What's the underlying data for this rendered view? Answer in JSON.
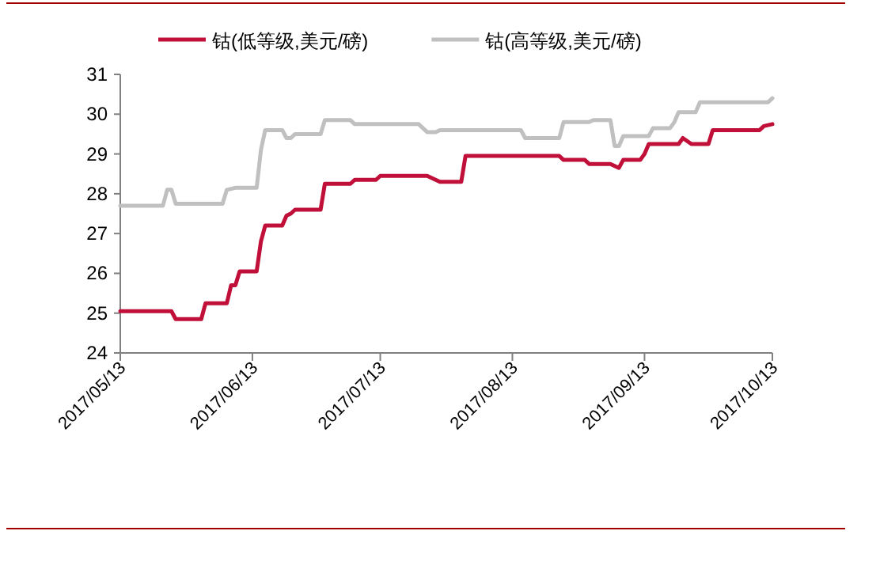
{
  "chart_data": {
    "type": "line",
    "legend": "top",
    "grid": false,
    "line_style": "solid",
    "xlim": [
      "2017-05-13",
      "2017-10-13"
    ],
    "xticks": [
      {
        "value": "2017-05-13",
        "label": "2017/05/13"
      },
      {
        "value": "2017-06-13",
        "label": "2017/06/13"
      },
      {
        "value": "2017-07-13",
        "label": "2017/07/13"
      },
      {
        "value": "2017-08-13",
        "label": "2017/08/13"
      },
      {
        "value": "2017-09-13",
        "label": "2017/09/13"
      },
      {
        "value": "2017-10-13",
        "label": "2017/10/13"
      }
    ],
    "ylim": [
      24,
      31
    ],
    "yticks": [
      24,
      25,
      26,
      27,
      28,
      29,
      30,
      31
    ],
    "series": [
      {
        "name": "钴(低等级,美元/磅)",
        "color": "#c0103a",
        "x": [
          "2017-05-13",
          "2017-05-25",
          "2017-05-26",
          "2017-06-01",
          "2017-06-02",
          "2017-06-07",
          "2017-06-08",
          "2017-06-09",
          "2017-06-10",
          "2017-06-14",
          "2017-06-15",
          "2017-06-16",
          "2017-06-20",
          "2017-06-21",
          "2017-06-22",
          "2017-06-23",
          "2017-06-29",
          "2017-06-30",
          "2017-07-06",
          "2017-07-07",
          "2017-07-12",
          "2017-07-13",
          "2017-07-24",
          "2017-07-27",
          "2017-08-01",
          "2017-08-02",
          "2017-08-24",
          "2017-08-25",
          "2017-08-30",
          "2017-08-31",
          "2017-09-05",
          "2017-09-07",
          "2017-09-08",
          "2017-09-12",
          "2017-09-13",
          "2017-09-14",
          "2017-09-21",
          "2017-09-22",
          "2017-09-24",
          "2017-09-28",
          "2017-09-29",
          "2017-10-10",
          "2017-10-11",
          "2017-10-13"
        ],
        "values": [
          25.05,
          25.05,
          24.85,
          24.85,
          25.25,
          25.25,
          25.7,
          25.7,
          26.05,
          26.05,
          26.8,
          27.2,
          27.2,
          27.45,
          27.5,
          27.6,
          27.6,
          28.25,
          28.25,
          28.35,
          28.35,
          28.45,
          28.45,
          28.3,
          28.3,
          28.95,
          28.95,
          28.85,
          28.85,
          28.75,
          28.75,
          28.65,
          28.85,
          28.85,
          29.0,
          29.25,
          29.25,
          29.4,
          29.25,
          29.25,
          29.6,
          29.6,
          29.7,
          29.75
        ]
      },
      {
        "name": "钴(高等级,美元/磅)",
        "color": "#c0c0c0",
        "x": [
          "2017-05-13",
          "2017-05-23",
          "2017-05-24",
          "2017-05-25",
          "2017-05-26",
          "2017-06-06",
          "2017-06-07",
          "2017-06-09",
          "2017-06-14",
          "2017-06-15",
          "2017-06-16",
          "2017-06-20",
          "2017-06-21",
          "2017-06-22",
          "2017-06-23",
          "2017-06-29",
          "2017-06-30",
          "2017-07-06",
          "2017-07-07",
          "2017-07-22",
          "2017-07-24",
          "2017-07-26",
          "2017-07-27",
          "2017-08-15",
          "2017-08-16",
          "2017-08-24",
          "2017-08-25",
          "2017-08-31",
          "2017-09-01",
          "2017-09-05",
          "2017-09-06",
          "2017-09-07",
          "2017-09-08",
          "2017-09-14",
          "2017-09-15",
          "2017-09-19",
          "2017-09-20",
          "2017-09-21",
          "2017-09-25",
          "2017-09-26",
          "2017-10-12",
          "2017-10-13"
        ],
        "values": [
          27.7,
          27.7,
          28.1,
          28.1,
          27.75,
          27.75,
          28.1,
          28.15,
          28.15,
          29.1,
          29.6,
          29.6,
          29.4,
          29.4,
          29.5,
          29.5,
          29.85,
          29.85,
          29.75,
          29.75,
          29.55,
          29.55,
          29.6,
          29.6,
          29.4,
          29.4,
          29.8,
          29.8,
          29.85,
          29.85,
          29.2,
          29.2,
          29.45,
          29.45,
          29.65,
          29.65,
          29.8,
          30.05,
          30.05,
          30.3,
          30.3,
          30.4
        ]
      }
    ]
  }
}
